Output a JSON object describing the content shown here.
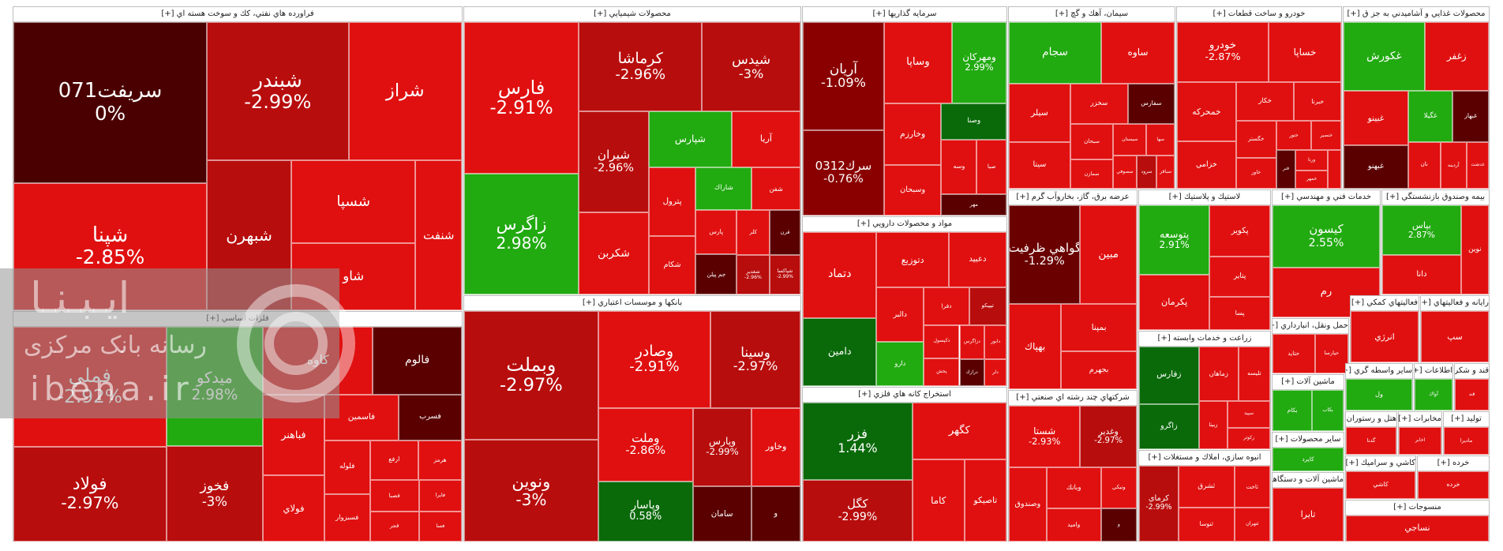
{
  "watermark": {
    "line1": "ايـبـنـا",
    "line2": "رسانه بانک مرکزی",
    "line3": "ibena.ir"
  },
  "chart_data": {
    "type": "treemap",
    "title": "",
    "value_label": "change %",
    "colors": {
      "red_dark": "#4a0000",
      "red": "#b80d0d",
      "red_light": "#e01010",
      "green": "#22aa11",
      "green_dark": "#0a6a0a"
    },
    "sectors": [
      {
        "title": "فراورده هاي نفتي، كك و سوخت هسته اي [+]",
        "stocks": [
          {
            "n": "سريفت071",
            "c": "0%",
            "v": 0
          },
          {
            "n": "شپنا",
            "c": "-2.85%",
            "v": -2.85
          },
          {
            "n": "شبندر",
            "c": "-2.99%",
            "v": -2.99
          },
          {
            "n": "شراز",
            "c": "",
            "v": -2.5
          },
          {
            "n": "شبهرن",
            "c": "",
            "v": -3
          },
          {
            "n": "شسپا",
            "c": "",
            "v": -2.9
          },
          {
            "n": "شاو",
            "c": "",
            "v": -2
          },
          {
            "n": "شنفت",
            "c": "",
            "v": -2.8
          }
        ]
      },
      {
        "title": "محصولات شيميايي [+]",
        "stocks": [
          {
            "n": "فارس",
            "c": "-2.91%",
            "v": -2.91
          },
          {
            "n": "زاگرس",
            "c": "2.98%",
            "v": 2.98
          },
          {
            "n": "كرماشا",
            "c": "-2.96%",
            "v": -2.96
          },
          {
            "n": "شيدس",
            "c": "-3%",
            "v": -3
          },
          {
            "n": "شيران",
            "c": "-2.96%",
            "v": -2.96
          },
          {
            "n": "شكربن",
            "c": "",
            "v": -2.8
          },
          {
            "n": "شپارس",
            "c": "",
            "v": 2.2
          },
          {
            "n": "آريا",
            "c": "",
            "v": -2.9
          },
          {
            "n": "پترول",
            "c": "",
            "v": -2.8
          },
          {
            "n": "شكام",
            "c": "",
            "v": -2.9
          },
          {
            "n": "شاراك",
            "c": "",
            "v": 2.3
          },
          {
            "n": "شفن",
            "c": "",
            "v": -2.7
          },
          {
            "n": "پارس",
            "c": "",
            "v": -2.8
          },
          {
            "n": "جم پيلن",
            "c": "",
            "v": -3.5
          },
          {
            "n": "كلر",
            "c": "",
            "v": -2.7
          },
          {
            "n": "قرن",
            "c": "",
            "v": -3.2
          },
          {
            "n": "شغدير",
            "c": "-2.96%",
            "v": -2.96
          },
          {
            "n": "شپاكسا",
            "c": "-2.99%",
            "v": -2.99
          }
        ]
      },
      {
        "title": "بانكها و موسسات اعتباري [+]",
        "stocks": [
          {
            "n": "وبملت",
            "c": "-2.97%",
            "v": -2.97
          },
          {
            "n": "ونوين",
            "c": "-3%",
            "v": -3
          },
          {
            "n": "وصادر",
            "c": "-2.91%",
            "v": -2.91
          },
          {
            "n": "وسينا",
            "c": "-2.97%",
            "v": -2.97
          },
          {
            "n": "وملت",
            "c": "-2.86%",
            "v": -2.86
          },
          {
            "n": "وپاسار",
            "c": "0.58%",
            "v": 0.58
          },
          {
            "n": "وپارس",
            "c": "-2.99%",
            "v": -2.99
          },
          {
            "n": "وخاور",
            "c": "",
            "v": -2.8
          },
          {
            "n": "سامان",
            "c": "",
            "v": -3.4
          },
          {
            "n": "و",
            "c": "",
            "v": -3.5
          }
        ]
      },
      {
        "title": "سرمايه گذاريها [+]",
        "stocks": [
          {
            "n": "آريان",
            "c": "-1.09%",
            "v": -1.09
          },
          {
            "n": "سرك0312",
            "c": "-0.76%",
            "v": -0.76
          },
          {
            "n": "وساپا",
            "c": "",
            "v": -2.9
          },
          {
            "n": "ومهركان",
            "c": "2.99%",
            "v": 2.99
          },
          {
            "n": "وخارزم",
            "c": "",
            "v": -2.8
          },
          {
            "n": "وسبحان",
            "c": "",
            "v": -2.9
          },
          {
            "n": "وصنا",
            "c": "",
            "v": 1.2
          },
          {
            "n": "وسه",
            "c": "",
            "v": -2.7
          },
          {
            "n": "صبا",
            "c": "",
            "v": -2.9
          },
          {
            "n": "مهر",
            "c": "",
            "v": -3.3
          }
        ]
      },
      {
        "title": "مواد و محصولات دارويي [+]",
        "stocks": [
          {
            "n": "دتماد",
            "c": "",
            "v": -2.8
          },
          {
            "n": "دامين",
            "c": "",
            "v": 1.3
          },
          {
            "n": "دتوزيع",
            "c": "",
            "v": -2.7
          },
          {
            "n": "دعبيد",
            "c": "",
            "v": -2.8
          },
          {
            "n": "دالبر",
            "c": "",
            "v": -2.9
          },
          {
            "n": "دارو",
            "c": "",
            "v": 2.5
          },
          {
            "n": "دفرا",
            "c": "",
            "v": -2.8
          },
          {
            "n": "تيپيكو",
            "c": "",
            "v": -3
          },
          {
            "n": "دكپسول",
            "c": "",
            "v": -2.9
          },
          {
            "n": "پخش",
            "c": "",
            "v": -2.8
          },
          {
            "n": "دزاگرس",
            "c": "",
            "v": -2.7
          },
          {
            "n": "دابور",
            "c": "",
            "v": -2.9
          },
          {
            "n": "درازك",
            "c": "",
            "v": -3.2
          },
          {
            "n": "دلر",
            "c": "",
            "v": -2.8
          }
        ]
      },
      {
        "title": "استخراج كانه هاي فلزي [+]",
        "stocks": [
          {
            "n": "فزر",
            "c": "1.44%",
            "v": 1.44
          },
          {
            "n": "كگل",
            "c": "-2.99%",
            "v": -2.99
          },
          {
            "n": "كگهر",
            "c": "",
            "v": -2.9
          },
          {
            "n": "كاما",
            "c": "",
            "v": -2.8
          },
          {
            "n": "تاصيكو",
            "c": "",
            "v": -2.7
          }
        ]
      },
      {
        "title": "سيمان، آهك و گچ [+]",
        "stocks": [
          {
            "n": "سجام",
            "c": "",
            "v": 2.4
          },
          {
            "n": "ساوه",
            "c": "",
            "v": -2.8
          },
          {
            "n": "سيلر",
            "c": "",
            "v": -2.7
          },
          {
            "n": "سيتا",
            "c": "",
            "v": -2.9
          },
          {
            "n": "سخزر",
            "c": "",
            "v": -2.7
          },
          {
            "n": "سفارس",
            "c": "",
            "v": -3.2
          },
          {
            "n": "سبحان",
            "c": "",
            "v": -2.8
          },
          {
            "n": "سمازن",
            "c": "",
            "v": -2.8
          },
          {
            "n": "سيستان",
            "c": "",
            "v": -2.9
          },
          {
            "n": "سها",
            "c": "",
            "v": -2.8
          },
          {
            "n": "سصوفي",
            "c": "",
            "v": -2.9
          },
          {
            "n": "سرود",
            "c": "",
            "v": -3
          },
          {
            "n": "سباقر",
            "c": "",
            "v": -2.7
          }
        ]
      },
      {
        "title": "عرضه برق، گاز، بخاروآب گرم [+]",
        "stocks": [
          {
            "n": "گواهي ظرفيت",
            "c": "-1.29%",
            "v": -1.29
          },
          {
            "n": "مبين",
            "c": "",
            "v": -2.8
          },
          {
            "n": "بهپاك",
            "c": "",
            "v": -2.9
          },
          {
            "n": "بمپنا",
            "c": "",
            "v": -2.8
          },
          {
            "n": "بجهرم",
            "c": "",
            "v": -2.9
          }
        ]
      },
      {
        "title": "خودرو و ساخت قطعات [+]",
        "stocks": [
          {
            "n": "خودرو",
            "c": "-2.87%",
            "v": -2.87
          },
          {
            "n": "خساپا",
            "c": "",
            "v": -2.8
          },
          {
            "n": "خمحركه",
            "c": "",
            "v": -2.9
          },
          {
            "n": "خزامي",
            "c": "",
            "v": -2.8
          },
          {
            "n": "خكار",
            "c": "",
            "v": -2.9
          },
          {
            "n": "خبرنا",
            "c": "",
            "v": -2.8
          },
          {
            "n": "خگستر",
            "c": "",
            "v": -2.9
          },
          {
            "n": "خاور",
            "c": "",
            "v": -2.7
          },
          {
            "n": "ختور",
            "c": "",
            "v": -2.8
          },
          {
            "n": "خنصير",
            "c": "",
            "v": -2.9
          },
          {
            "n": "فنر",
            "c": "",
            "v": -3.2
          },
          {
            "n": "ورنا",
            "c": "",
            "v": -2.8
          },
          {
            "n": "خمهر",
            "c": "",
            "v": -2.9
          },
          {
            "n": "خلنت",
            "c": "",
            "v": -2.8
          }
        ]
      },
      {
        "title": "محصولات غذايي و آشاميدني به جز ق [+]",
        "stocks": [
          {
            "n": "غكورش",
            "c": "",
            "v": 2.2
          },
          {
            "n": "زغفر",
            "c": "",
            "v": -2.8
          },
          {
            "n": "غبينو",
            "c": "",
            "v": -2.8
          },
          {
            "n": "غبهنو",
            "c": "",
            "v": -3.2
          },
          {
            "n": "غگيلا",
            "c": "",
            "v": 2.3
          },
          {
            "n": "غبهار",
            "c": "",
            "v": -3.3
          },
          {
            "n": "نان",
            "c": "",
            "v": -2.8
          },
          {
            "n": "آردينه",
            "c": "",
            "v": -2.9
          },
          {
            "n": "غدشت",
            "c": "",
            "v": -2.8
          }
        ]
      },
      {
        "title": "لاستيك و پلاستيك [+]",
        "stocks": [
          {
            "n": "پتوسعه",
            "c": "2.91%",
            "v": 2.91
          },
          {
            "n": "پكرمان",
            "c": "",
            "v": -2.8
          },
          {
            "n": "پكوير",
            "c": "",
            "v": -2.9
          },
          {
            "n": "پتاير",
            "c": "",
            "v": -2.8
          },
          {
            "n": "پسا",
            "c": "",
            "v": -2.9
          }
        ]
      },
      {
        "title": "خدمات فني و مهندسي [+]",
        "stocks": [
          {
            "n": "كيسون",
            "c": "2.55%",
            "v": 2.55
          },
          {
            "n": "رم",
            "c": "",
            "v": -2.8
          }
        ]
      },
      {
        "title": "بيمه وصندوق بازنشستگي [+]",
        "stocks": [
          {
            "n": "بپاس",
            "c": "2.87%",
            "v": 2.87
          },
          {
            "n": "دانا",
            "c": "",
            "v": -2.8
          },
          {
            "n": "نوين",
            "c": "",
            "v": -2.8
          }
        ]
      },
      {
        "title": "فلزات اساسي [+]",
        "stocks": [
          {
            "n": "فملي",
            "c": "-2.92%",
            "v": -2.92
          },
          {
            "n": "فولاد",
            "c": "-2.97%",
            "v": -2.97
          },
          {
            "n": "ميدكو",
            "c": "2.98%",
            "v": 2.98
          },
          {
            "n": "فخوز",
            "c": "-3%",
            "v": -3
          },
          {
            "n": "كاوه",
            "c": "",
            "v": -2.8
          },
          {
            "n": "فالوم",
            "c": "",
            "v": -3.3
          },
          {
            "n": "فباهنر",
            "c": "",
            "v": -2.8
          },
          {
            "n": "فولاي",
            "c": "",
            "v": -2.9
          },
          {
            "n": "فاسمين",
            "c": "",
            "v": -2.8
          },
          {
            "n": "فسرب",
            "c": "",
            "v": -3.3
          },
          {
            "n": "فلوله",
            "c": "",
            "v": -2.9
          },
          {
            "n": "فسبزوار",
            "c": "",
            "v": -2.9
          },
          {
            "n": "ارفع",
            "c": "",
            "v": -2.8
          },
          {
            "n": "هرمز",
            "c": "",
            "v": -2.7
          },
          {
            "n": "فصبا",
            "c": "",
            "v": -2.8
          },
          {
            "n": "فجر",
            "c": "",
            "v": -2.9
          },
          {
            "n": "فايرا",
            "c": "",
            "v": -2.7
          },
          {
            "n": "فسا",
            "c": "",
            "v": -2.8
          }
        ]
      },
      {
        "title": "شركتهاي چند رشته اي صنعتي [+]",
        "stocks": [
          {
            "n": "شستا",
            "c": "-2.93%",
            "v": -2.93
          },
          {
            "n": "وغدير",
            "c": "-2.97%",
            "v": -2.97
          },
          {
            "n": "وصندوق",
            "c": "",
            "v": -2.8
          },
          {
            "n": "وبانك",
            "c": "",
            "v": -2.8
          },
          {
            "n": "واميد",
            "c": "",
            "v": -2.9
          },
          {
            "n": "ونيكي",
            "c": "",
            "v": -2.8
          },
          {
            "n": "و",
            "c": "",
            "v": -3.3
          }
        ]
      },
      {
        "title": "زراعت و خدمات وابسته [+]",
        "stocks": [
          {
            "n": "زفارس",
            "c": "",
            "v": 1.4
          },
          {
            "n": "زاگرو",
            "c": "",
            "v": 1.2
          },
          {
            "n": "زماهان",
            "c": "",
            "v": -2.8
          },
          {
            "n": "تليسه",
            "c": "",
            "v": -2.9
          },
          {
            "n": "زبينا",
            "c": "",
            "v": -2.8
          },
          {
            "n": "سپيد",
            "c": "",
            "v": -2.8
          },
          {
            "n": "زكوثر",
            "c": "",
            "v": -2.9
          }
        ]
      },
      {
        "title": "انبوه سازي، املاك و مستغلات [+]",
        "stocks": [
          {
            "n": "كرماي",
            "c": "-2.99%",
            "v": -2.99
          },
          {
            "n": "ثشرق",
            "c": "",
            "v": -2.8
          },
          {
            "n": "ثنوسا",
            "c": "",
            "v": -2.8
          },
          {
            "n": "ثاخت",
            "c": "",
            "v": -2.9
          },
          {
            "n": "ثتهران",
            "c": "",
            "v": -2.8
          }
        ]
      },
      {
        "title": "حمل ونقل، انبارداري [+]",
        "stocks": [
          {
            "n": "حتايد",
            "c": "",
            "v": -2.8
          },
          {
            "n": "حپارسا",
            "c": "",
            "v": -2.9
          }
        ]
      },
      {
        "title": "فعاليتهاي كمكي [+]",
        "stocks": [
          {
            "n": "انرژي",
            "c": "",
            "v": -2.8
          }
        ]
      },
      {
        "title": "رايانه و فعاليتهاي [+]",
        "stocks": [
          {
            "n": "سپ",
            "c": "",
            "v": -2.8
          }
        ]
      },
      {
        "title": "ماشين آلات [+]",
        "stocks": [
          {
            "n": "بكام",
            "c": "",
            "v": 2.2
          },
          {
            "n": "بكاب",
            "c": "",
            "v": 2.1
          }
        ]
      },
      {
        "title": "ساير واسطه گري [+]",
        "stocks": [
          {
            "n": "ول",
            "c": "",
            "v": 2.2
          }
        ]
      },
      {
        "title": "اطلاعات [+]",
        "stocks": [
          {
            "n": "آواك",
            "c": "",
            "v": 2.1
          }
        ]
      },
      {
        "title": "قند و شكر [+]",
        "stocks": [
          {
            "n": "قند",
            "c": "",
            "v": -2.8
          }
        ]
      },
      {
        "title": "ساير محصولات [+]",
        "stocks": [
          {
            "n": "كاپرد",
            "c": "",
            "v": 2.2
          }
        ]
      },
      {
        "title": "هتل و رستوران [+]",
        "stocks": [
          {
            "n": "گدنا",
            "c": "",
            "v": -2.8
          }
        ]
      },
      {
        "title": "مخابرات [+]",
        "stocks": [
          {
            "n": "اخابر",
            "c": "",
            "v": -2.8
          }
        ]
      },
      {
        "title": "توليد [+]",
        "stocks": [
          {
            "n": "ماديرا",
            "c": "",
            "v": -2.8
          }
        ]
      },
      {
        "title": "كاشي و سراميك [+]",
        "stocks": [
          {
            "n": "كاشي",
            "c": "",
            "v": -2.8
          }
        ]
      },
      {
        "title": "ماشين آلات و دستگاههاي برقي [+]",
        "stocks": [
          {
            "n": "تايرا",
            "c": "",
            "v": -2.8
          }
        ]
      },
      {
        "title": "خرده [+]",
        "stocks": [
          {
            "n": "خرده",
            "c": "",
            "v": -2.8
          }
        ]
      },
      {
        "title": "منسوجات [+]",
        "stocks": [
          {
            "n": "نساجي",
            "c": "",
            "v": -2.8
          }
        ]
      }
    ]
  }
}
